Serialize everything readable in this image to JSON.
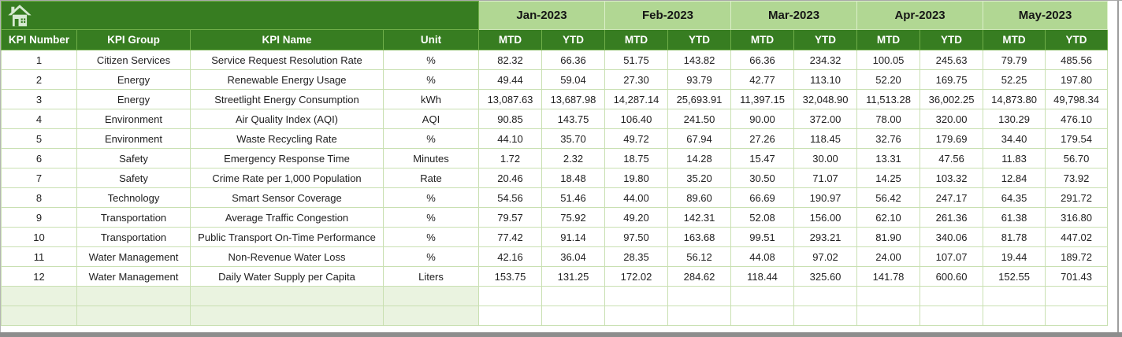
{
  "window": {
    "frame_color": "#8d8d8d"
  },
  "colors": {
    "header_dark_green": "#377d21",
    "header_light_green": "#b1d793",
    "gridline_green": "#c9e0b2",
    "empty_row_fill": "#eaf3e0",
    "icon_fill": "#d7ead2"
  },
  "table": {
    "corner_icon": "home-icon",
    "kpi_headers": [
      "KPI Number",
      "KPI Group",
      "KPI Name",
      "Unit"
    ],
    "months": [
      "Jan-2023",
      "Feb-2023",
      "Mar-2023",
      "Apr-2023",
      "May-2023"
    ],
    "period_headers": [
      "MTD",
      "YTD"
    ],
    "rows": [
      {
        "kpi_number": "1",
        "kpi_group": "Citizen Services",
        "kpi_name": "Service Request Resolution Rate",
        "unit": "%",
        "values": [
          "82.32",
          "66.36",
          "51.75",
          "143.82",
          "66.36",
          "234.32",
          "100.05",
          "245.63",
          "79.79",
          "485.56"
        ]
      },
      {
        "kpi_number": "2",
        "kpi_group": "Energy",
        "kpi_name": "Renewable Energy Usage",
        "unit": "%",
        "values": [
          "49.44",
          "59.04",
          "27.30",
          "93.79",
          "42.77",
          "113.10",
          "52.20",
          "169.75",
          "52.25",
          "197.80"
        ]
      },
      {
        "kpi_number": "3",
        "kpi_group": "Energy",
        "kpi_name": "Streetlight Energy Consumption",
        "unit": "kWh",
        "values": [
          "13,087.63",
          "13,687.98",
          "14,287.14",
          "25,693.91",
          "11,397.15",
          "32,048.90",
          "11,513.28",
          "36,002.25",
          "14,873.80",
          "49,798.34"
        ]
      },
      {
        "kpi_number": "4",
        "kpi_group": "Environment",
        "kpi_name": "Air Quality Index (AQI)",
        "unit": "AQI",
        "values": [
          "90.85",
          "143.75",
          "106.40",
          "241.50",
          "90.00",
          "372.00",
          "78.00",
          "320.00",
          "130.29",
          "476.10"
        ]
      },
      {
        "kpi_number": "5",
        "kpi_group": "Environment",
        "kpi_name": "Waste Recycling Rate",
        "unit": "%",
        "values": [
          "44.10",
          "35.70",
          "49.72",
          "67.94",
          "27.26",
          "118.45",
          "32.76",
          "179.69",
          "34.40",
          "179.54"
        ]
      },
      {
        "kpi_number": "6",
        "kpi_group": "Safety",
        "kpi_name": "Emergency Response Time",
        "unit": "Minutes",
        "values": [
          "1.72",
          "2.32",
          "18.75",
          "14.28",
          "15.47",
          "30.00",
          "13.31",
          "47.56",
          "11.83",
          "56.70"
        ]
      },
      {
        "kpi_number": "7",
        "kpi_group": "Safety",
        "kpi_name": "Crime Rate per 1,000 Population",
        "unit": "Rate",
        "values": [
          "20.46",
          "18.48",
          "19.80",
          "35.20",
          "30.50",
          "71.07",
          "14.25",
          "103.32",
          "12.84",
          "73.92"
        ]
      },
      {
        "kpi_number": "8",
        "kpi_group": "Technology",
        "kpi_name": "Smart Sensor Coverage",
        "unit": "%",
        "values": [
          "54.56",
          "51.46",
          "44.00",
          "89.60",
          "66.69",
          "190.97",
          "56.42",
          "247.17",
          "64.35",
          "291.72"
        ]
      },
      {
        "kpi_number": "9",
        "kpi_group": "Transportation",
        "kpi_name": "Average Traffic Congestion",
        "unit": "%",
        "values": [
          "79.57",
          "75.92",
          "49.20",
          "142.31",
          "52.08",
          "156.00",
          "62.10",
          "261.36",
          "61.38",
          "316.80"
        ]
      },
      {
        "kpi_number": "10",
        "kpi_group": "Transportation",
        "kpi_name": "Public Transport On-Time Performance",
        "unit": "%",
        "values": [
          "77.42",
          "91.14",
          "97.50",
          "163.68",
          "99.51",
          "293.21",
          "81.90",
          "340.06",
          "81.78",
          "447.02"
        ]
      },
      {
        "kpi_number": "11",
        "kpi_group": "Water Management",
        "kpi_name": "Non-Revenue Water Loss",
        "unit": "%",
        "values": [
          "42.16",
          "36.04",
          "28.35",
          "56.12",
          "44.08",
          "97.02",
          "24.00",
          "107.07",
          "19.44",
          "189.72"
        ]
      },
      {
        "kpi_number": "12",
        "kpi_group": "Water Management",
        "kpi_name": "Daily Water Supply per Capita",
        "unit": "Liters",
        "values": [
          "153.75",
          "131.25",
          "172.02",
          "284.62",
          "118.44",
          "325.60",
          "141.78",
          "600.60",
          "152.55",
          "701.43"
        ]
      }
    ],
    "empty_row_count": 2
  }
}
